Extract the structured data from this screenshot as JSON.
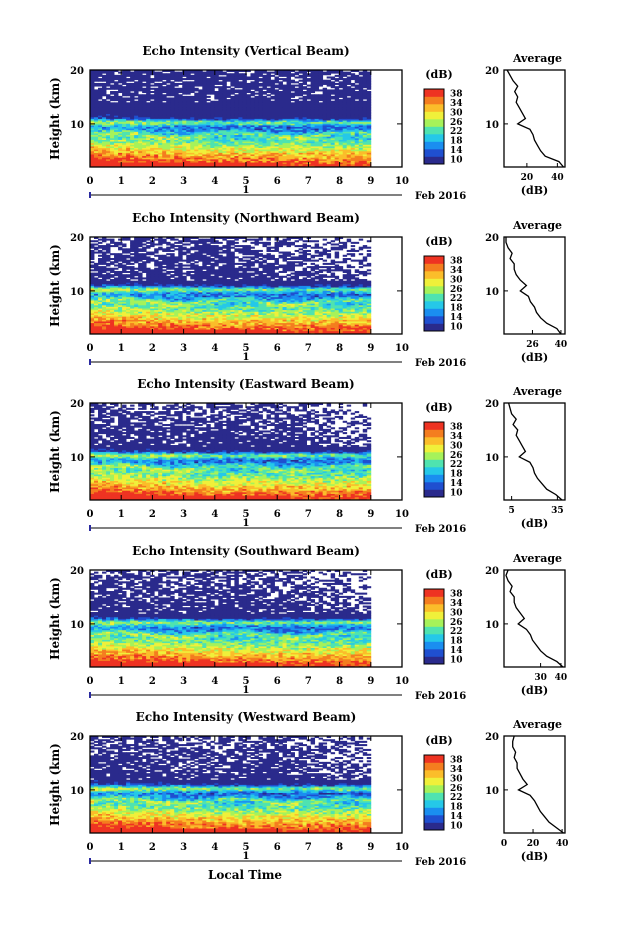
{
  "figure": {
    "xlabel": "Local Time",
    "date_label": "Feb 2016",
    "day_label": "1",
    "colorbar_unit": "(dB)",
    "colorbar_ticks": [
      "10",
      "14",
      "18",
      "22",
      "26",
      "30",
      "34",
      "38"
    ],
    "average_title": "Average",
    "average_xlabel": "(dB)"
  },
  "colors": {
    "colormap": [
      "#2a2a8c",
      "#1f4fd0",
      "#1a8ef0",
      "#25c8e8",
      "#4fe3b0",
      "#a6f25a",
      "#f0f03a",
      "#fbbd2a",
      "#f47d1f",
      "#ee3322"
    ]
  },
  "chart_data": [
    {
      "type": "heatmap",
      "title": "Echo Intensity (Vertical Beam)",
      "ylabel": "Height (km)",
      "xlim": [
        0,
        10
      ],
      "ylim": [
        2,
        20
      ],
      "x_ticks": [
        "0",
        "1",
        "2",
        "3",
        "4",
        "5",
        "6",
        "7",
        "8",
        "9",
        "10"
      ],
      "y_ticks": [
        "20",
        "10"
      ],
      "data_x_end": 9,
      "value_range": [
        10,
        38
      ],
      "profile": {
        "title": "Average",
        "xlabel": "(dB)",
        "x_ticks": [
          "20",
          "40"
        ],
        "xlim": [
          5,
          45
        ],
        "heights": [
          2,
          3,
          4,
          5,
          6,
          7,
          8,
          9,
          10,
          11,
          12,
          13,
          14,
          15,
          16,
          17,
          18,
          19,
          20
        ],
        "values": [
          44,
          41,
          32,
          29,
          27,
          25,
          24,
          22,
          14,
          19,
          17,
          15,
          13,
          14,
          12,
          14,
          11,
          9,
          7
        ]
      }
    },
    {
      "type": "heatmap",
      "title": "Echo Intensity (Northward Beam)",
      "ylabel": "Height (km)",
      "xlim": [
        0,
        10
      ],
      "ylim": [
        2,
        20
      ],
      "x_ticks": [
        "0",
        "1",
        "2",
        "3",
        "4",
        "5",
        "6",
        "7",
        "8",
        "9",
        "10"
      ],
      "y_ticks": [
        "20",
        "10"
      ],
      "data_x_end": 9,
      "value_range": [
        10,
        38
      ],
      "profile": {
        "title": "Average",
        "xlabel": "(dB)",
        "x_ticks": [
          "26",
          "40"
        ],
        "xlim": [
          12,
          42
        ],
        "heights": [
          2,
          3,
          4,
          5,
          6,
          7,
          8,
          9,
          10,
          11,
          12,
          13,
          14,
          15,
          16,
          17,
          18,
          19,
          20
        ],
        "values": [
          40,
          38,
          33,
          30,
          28,
          27,
          25,
          24,
          20,
          23,
          20,
          18,
          17,
          17,
          15,
          16,
          14,
          13,
          13
        ]
      }
    },
    {
      "type": "heatmap",
      "title": "Echo Intensity (Eastward Beam)",
      "ylabel": "Height (km)",
      "xlim": [
        0,
        10
      ],
      "ylim": [
        2,
        20
      ],
      "x_ticks": [
        "0",
        "1",
        "2",
        "3",
        "4",
        "5",
        "6",
        "7",
        "8",
        "9",
        "10"
      ],
      "y_ticks": [
        "20",
        "10"
      ],
      "data_x_end": 9,
      "value_range": [
        10,
        38
      ],
      "profile": {
        "title": "Average",
        "xlabel": "(dB)",
        "x_ticks": [
          "5",
          "35"
        ],
        "xlim": [
          0,
          40
        ],
        "heights": [
          2,
          3,
          4,
          5,
          6,
          7,
          8,
          9,
          10,
          11,
          12,
          13,
          14,
          15,
          16,
          17,
          18,
          19,
          20
        ],
        "values": [
          38,
          34,
          28,
          25,
          22,
          20,
          19,
          17,
          10,
          14,
          12,
          10,
          8,
          9,
          6,
          8,
          5,
          4,
          3
        ]
      }
    },
    {
      "type": "heatmap",
      "title": "Echo Intensity (Southward Beam)",
      "ylabel": "Height (km)",
      "xlim": [
        0,
        10
      ],
      "ylim": [
        2,
        20
      ],
      "x_ticks": [
        "0",
        "1",
        "2",
        "3",
        "4",
        "5",
        "6",
        "7",
        "8",
        "9",
        "10"
      ],
      "y_ticks": [
        "20",
        "10"
      ],
      "data_x_end": 9,
      "value_range": [
        10,
        38
      ],
      "profile": {
        "title": "Average",
        "xlabel": "(dB)",
        "x_ticks": [
          "30",
          "40"
        ],
        "xlim": [
          12,
          42
        ],
        "heights": [
          2,
          3,
          4,
          5,
          6,
          7,
          8,
          9,
          10,
          11,
          12,
          13,
          14,
          15,
          16,
          17,
          18,
          19,
          20
        ],
        "values": [
          41,
          38,
          33,
          30,
          28,
          26,
          25,
          23,
          19,
          22,
          20,
          18,
          17,
          17,
          15,
          16,
          14,
          13,
          14
        ]
      }
    },
    {
      "type": "heatmap",
      "title": "Echo Intensity (Westward Beam)",
      "ylabel": "Height (km)",
      "xlim": [
        0,
        10
      ],
      "ylim": [
        2,
        20
      ],
      "x_ticks": [
        "0",
        "1",
        "2",
        "3",
        "4",
        "5",
        "6",
        "7",
        "8",
        "9",
        "10"
      ],
      "y_ticks": [
        "20",
        "10"
      ],
      "data_x_end": 9,
      "value_range": [
        10,
        38
      ],
      "profile": {
        "title": "Average",
        "xlabel": "(dB)",
        "x_ticks": [
          "0",
          "20",
          "40"
        ],
        "xlim": [
          0,
          42
        ],
        "heights": [
          2,
          3,
          4,
          5,
          6,
          7,
          8,
          9,
          10,
          11,
          12,
          13,
          14,
          15,
          16,
          17,
          18,
          19,
          20
        ],
        "values": [
          41,
          36,
          31,
          28,
          25,
          23,
          21,
          18,
          10,
          16,
          13,
          11,
          9,
          9,
          7,
          8,
          6,
          6,
          7
        ]
      }
    }
  ]
}
